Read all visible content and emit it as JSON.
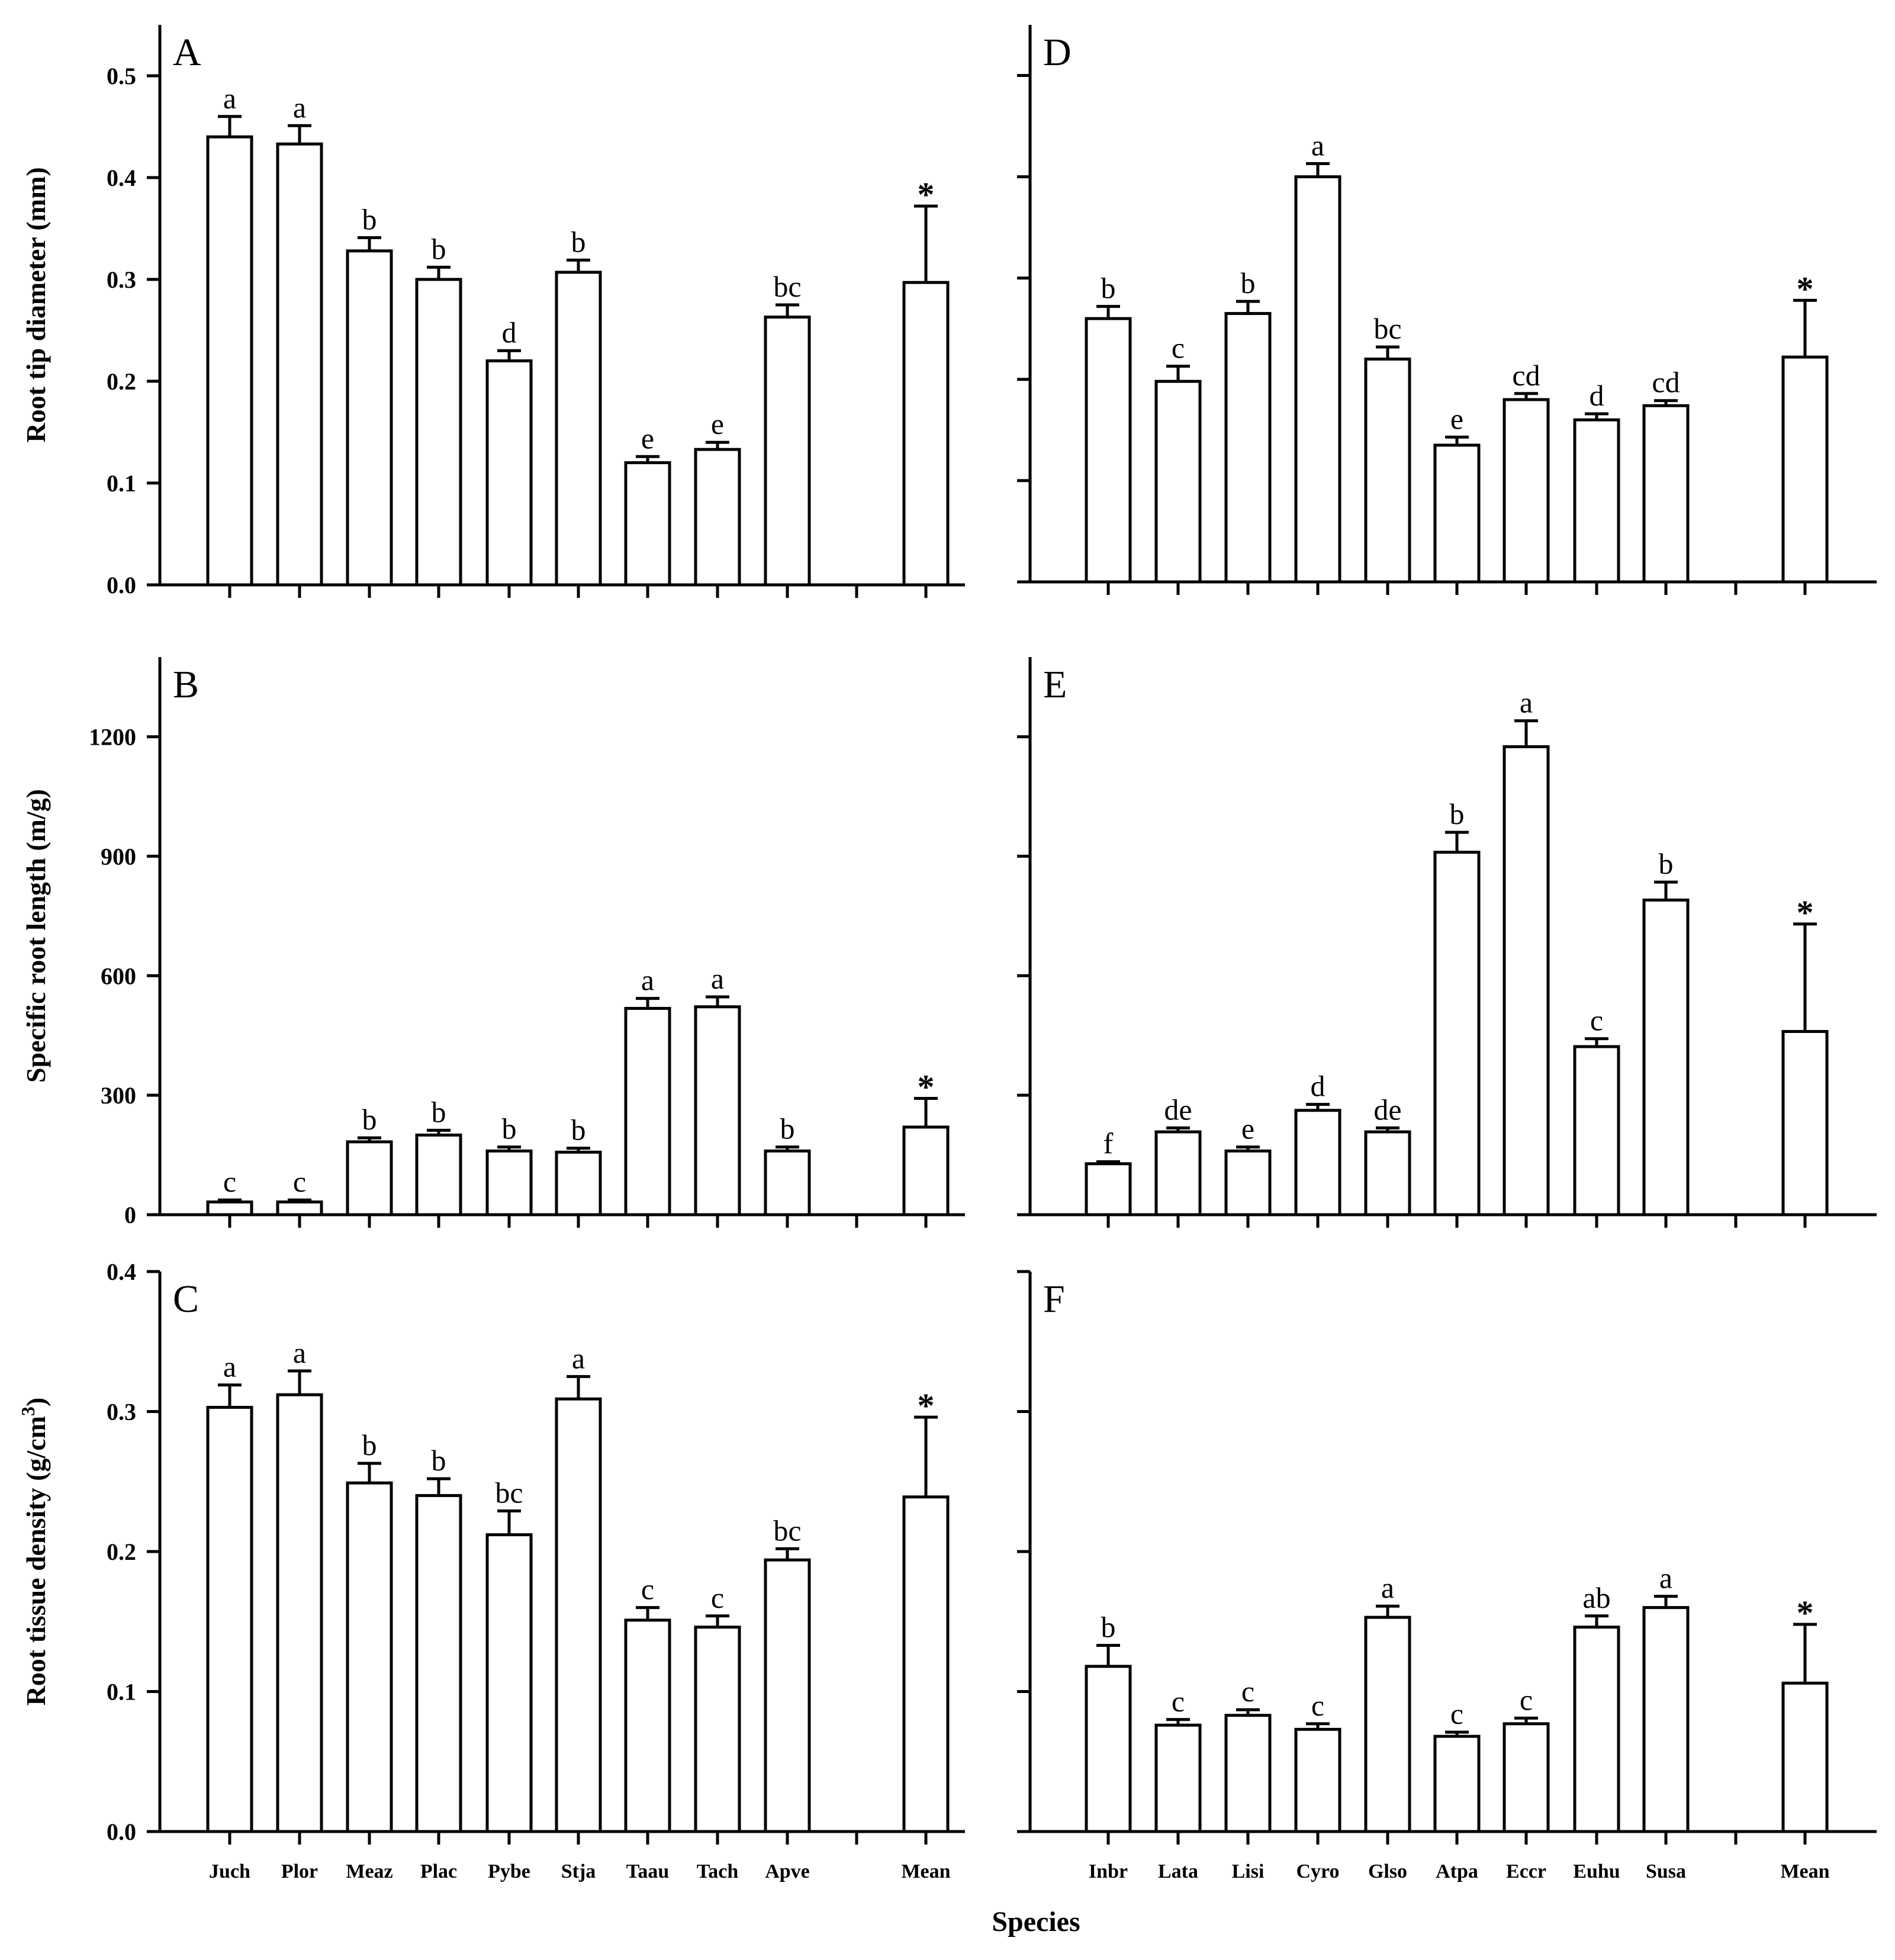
{
  "x_axis_title": "Species",
  "panels": [
    {
      "letter": "A",
      "ylabel": "Root tip diameter (mm)",
      "ylim": [
        0,
        0.55
      ],
      "yticks": [
        0,
        0.1,
        0.2,
        0.3,
        0.4,
        0.5
      ],
      "ytick_labels": [
        "0.0",
        "0.1",
        "0.2",
        "0.3",
        "0.4",
        "0.5"
      ],
      "categories": [
        "Juch",
        "Plor",
        "Meaz",
        "Plac",
        "Pybe",
        "Stja",
        "Taau",
        "Tach",
        "Apve",
        "Mean"
      ],
      "values": [
        0.44,
        0.433,
        0.328,
        0.3,
        0.22,
        0.307,
        0.12,
        0.133,
        0.263,
        0.297
      ],
      "errors": [
        0.02,
        0.018,
        0.013,
        0.012,
        0.01,
        0.012,
        0.006,
        0.007,
        0.012,
        0.075
      ],
      "letters": [
        "a",
        "a",
        "b",
        "b",
        "d",
        "b",
        "e",
        "e",
        "bc",
        "*"
      ]
    },
    {
      "letter": "B",
      "ylabel": "Specific root length (m/g)",
      "ylim": [
        0,
        1400
      ],
      "yticks": [
        0,
        300,
        600,
        900,
        1200
      ],
      "ytick_labels": [
        "0",
        "300",
        "600",
        "900",
        "1200"
      ],
      "categories": [
        "Juch",
        "Plor",
        "Meaz",
        "Plac",
        "Pybe",
        "Stja",
        "Taau",
        "Tach",
        "Apve",
        "Mean"
      ],
      "values": [
        32,
        32,
        183,
        200,
        160,
        157,
        518,
        522,
        160,
        220
      ],
      "errors": [
        5,
        5,
        10,
        12,
        10,
        10,
        25,
        25,
        10,
        72
      ],
      "letters": [
        "c",
        "c",
        "b",
        "b",
        "b",
        "b",
        "a",
        "a",
        "b",
        "*"
      ]
    },
    {
      "letter": "C",
      "ylabel": "Root tissue density (g/cm",
      "ylabel_sup": "3",
      "ylabel_end": ")",
      "ylim": [
        0,
        0.4
      ],
      "yticks": [
        0,
        0.1,
        0.2,
        0.3,
        0.4
      ],
      "ytick_labels": [
        "0.0",
        "0.1",
        "0.2",
        "0.3",
        "0.4"
      ],
      "categories": [
        "Juch",
        "Plor",
        "Meaz",
        "Plac",
        "Pybe",
        "Stja",
        "Taau",
        "Tach",
        "Apve",
        "Mean"
      ],
      "values": [
        0.303,
        0.312,
        0.249,
        0.24,
        0.212,
        0.309,
        0.151,
        0.146,
        0.194,
        0.239
      ],
      "errors": [
        0.016,
        0.017,
        0.014,
        0.012,
        0.017,
        0.016,
        0.009,
        0.008,
        0.008,
        0.057
      ],
      "letters": [
        "a",
        "a",
        "b",
        "b",
        "bc",
        "a",
        "c",
        "c",
        "bc",
        "*"
      ]
    },
    {
      "letter": "D",
      "ylabel": "",
      "ylim": [
        0,
        0.55
      ],
      "yticks": [
        0,
        0.1,
        0.2,
        0.3,
        0.4,
        0.5
      ],
      "categories": [
        "Inbr",
        "Lata",
        "Lisi",
        "Cyro",
        "Glso",
        "Atpa",
        "Eccr",
        "Euhu",
        "Susa",
        "Mean"
      ],
      "values": [
        0.26,
        0.198,
        0.265,
        0.4,
        0.22,
        0.135,
        0.18,
        0.16,
        0.174,
        0.222
      ],
      "errors": [
        0.012,
        0.015,
        0.012,
        0.013,
        0.012,
        0.008,
        0.006,
        0.006,
        0.005,
        0.056
      ],
      "letters": [
        "b",
        "c",
        "b",
        "a",
        "bc",
        "e",
        "cd",
        "d",
        "cd",
        "*"
      ]
    },
    {
      "letter": "E",
      "ylabel": "",
      "ylim": [
        0,
        1400
      ],
      "yticks": [
        0,
        300,
        600,
        900,
        1200
      ],
      "categories": [
        "Inbr",
        "Lata",
        "Lisi",
        "Cyro",
        "Glso",
        "Atpa",
        "Eccr",
        "Euhu",
        "Susa",
        "Mean"
      ],
      "values": [
        128,
        208,
        160,
        262,
        208,
        910,
        1175,
        422,
        790,
        460
      ],
      "errors": [
        5,
        10,
        10,
        15,
        10,
        50,
        65,
        20,
        45,
        270
      ],
      "letters": [
        "f",
        "de",
        "e",
        "d",
        "de",
        "b",
        "a",
        "c",
        "b",
        "*"
      ]
    },
    {
      "letter": "F",
      "ylabel": "",
      "ylim": [
        0,
        0.4
      ],
      "yticks": [
        0,
        0.1,
        0.2,
        0.3,
        0.4
      ],
      "categories": [
        "Inbr",
        "Lata",
        "Lisi",
        "Cyro",
        "Glso",
        "Atpa",
        "Eccr",
        "Euhu",
        "Susa",
        "Mean"
      ],
      "values": [
        0.118,
        0.076,
        0.083,
        0.073,
        0.153,
        0.068,
        0.077,
        0.146,
        0.16,
        0.106
      ],
      "errors": [
        0.015,
        0.004,
        0.004,
        0.004,
        0.008,
        0.003,
        0.004,
        0.008,
        0.008,
        0.042
      ],
      "letters": [
        "b",
        "c",
        "c",
        "c",
        "a",
        "c",
        "c",
        "ab",
        "a",
        "*"
      ]
    }
  ],
  "chart_data": [
    {
      "type": "bar",
      "title": "A",
      "xlabel": "Species",
      "ylabel": "Root tip diameter (mm)",
      "ylim": [
        0,
        0.55
      ],
      "categories": [
        "Juch",
        "Plor",
        "Meaz",
        "Plac",
        "Pybe",
        "Stja",
        "Taau",
        "Tach",
        "Apve",
        "Mean"
      ],
      "values": [
        0.44,
        0.433,
        0.328,
        0.3,
        0.22,
        0.307,
        0.12,
        0.133,
        0.263,
        0.297
      ]
    },
    {
      "type": "bar",
      "title": "B",
      "xlabel": "Species",
      "ylabel": "Specific root length (m/g)",
      "ylim": [
        0,
        1400
      ],
      "categories": [
        "Juch",
        "Plor",
        "Meaz",
        "Plac",
        "Pybe",
        "Stja",
        "Taau",
        "Tach",
        "Apve",
        "Mean"
      ],
      "values": [
        32,
        32,
        183,
        200,
        160,
        157,
        518,
        522,
        160,
        220
      ]
    },
    {
      "type": "bar",
      "title": "C",
      "xlabel": "Species",
      "ylabel": "Root tissue density (g/cm3)",
      "ylim": [
        0,
        0.4
      ],
      "categories": [
        "Juch",
        "Plor",
        "Meaz",
        "Plac",
        "Pybe",
        "Stja",
        "Taau",
        "Tach",
        "Apve",
        "Mean"
      ],
      "values": [
        0.303,
        0.312,
        0.249,
        0.24,
        0.212,
        0.309,
        0.151,
        0.146,
        0.194,
        0.239
      ]
    },
    {
      "type": "bar",
      "title": "D",
      "xlabel": "Species",
      "ylabel": "Root tip diameter (mm)",
      "ylim": [
        0,
        0.55
      ],
      "categories": [
        "Inbr",
        "Lata",
        "Lisi",
        "Cyro",
        "Glso",
        "Atpa",
        "Eccr",
        "Euhu",
        "Susa",
        "Mean"
      ],
      "values": [
        0.26,
        0.198,
        0.265,
        0.4,
        0.22,
        0.135,
        0.18,
        0.16,
        0.174,
        0.222
      ]
    },
    {
      "type": "bar",
      "title": "E",
      "xlabel": "Species",
      "ylabel": "Specific root length (m/g)",
      "ylim": [
        0,
        1400
      ],
      "categories": [
        "Inbr",
        "Lata",
        "Lisi",
        "Cyro",
        "Glso",
        "Atpa",
        "Eccr",
        "Euhu",
        "Susa",
        "Mean"
      ],
      "values": [
        128,
        208,
        160,
        262,
        208,
        910,
        1175,
        422,
        790,
        460
      ]
    },
    {
      "type": "bar",
      "title": "F",
      "xlabel": "Species",
      "ylabel": "Root tissue density (g/cm3)",
      "ylim": [
        0,
        0.4
      ],
      "categories": [
        "Inbr",
        "Lata",
        "Lisi",
        "Cyro",
        "Glso",
        "Atpa",
        "Eccr",
        "Euhu",
        "Susa",
        "Mean"
      ],
      "values": [
        0.118,
        0.076,
        0.083,
        0.073,
        0.153,
        0.068,
        0.077,
        0.146,
        0.16,
        0.106
      ]
    }
  ]
}
